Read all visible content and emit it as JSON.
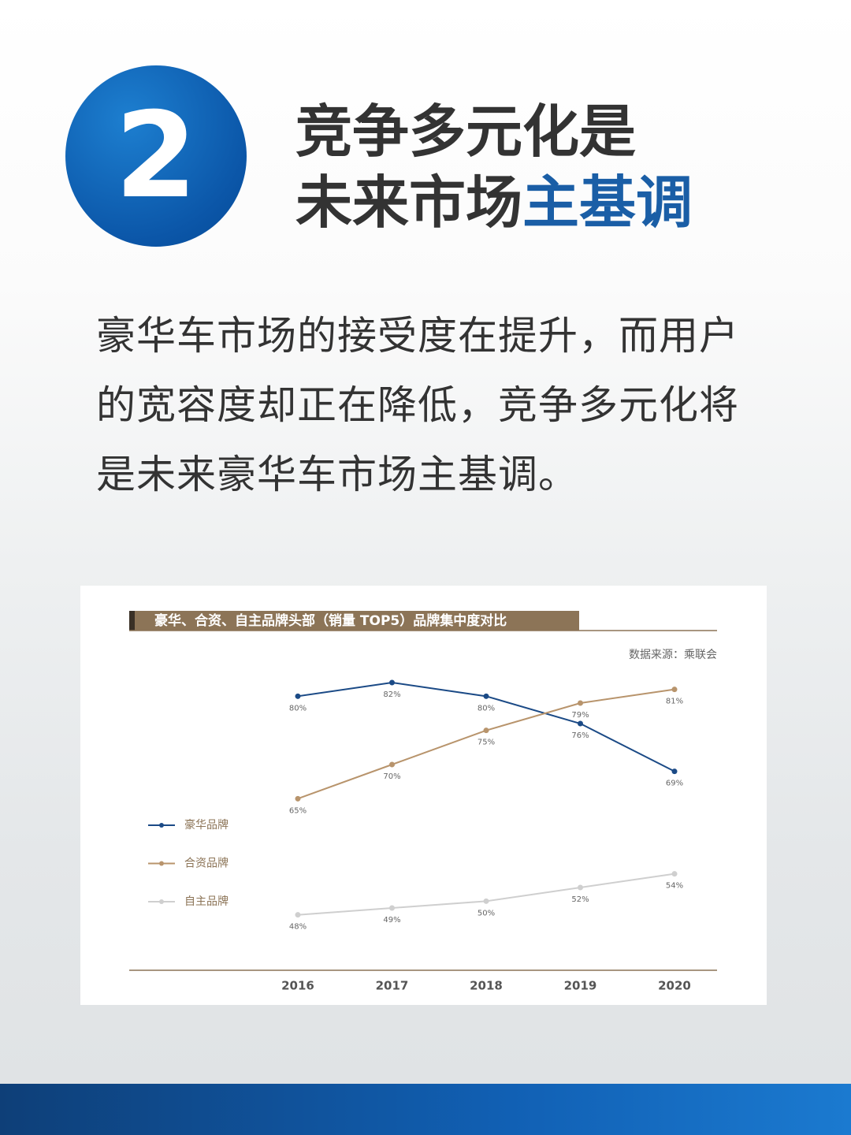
{
  "header": {
    "number": "2",
    "title_line1": "竞争多元化是",
    "title_line2_main": "未来市场",
    "title_line2_highlight": "主基调"
  },
  "body": {
    "paragraph": "豪华车市场的接受度在提升，而用户的宽容度却正在降低，竞争多元化将是未来豪华车市场主基调。"
  },
  "chart_data": {
    "type": "line",
    "title": "豪华、合资、自主品牌头部（销量 TOP5）品牌集中度对比",
    "source": "数据来源：乘联会",
    "categories": [
      "2016",
      "2017",
      "2018",
      "2019",
      "2020"
    ],
    "series": [
      {
        "name": "豪华品牌",
        "color": "#1b4a86",
        "values": [
          80,
          82,
          80,
          76,
          69
        ],
        "value_labels": [
          "80%",
          "82%",
          "80%",
          "76%",
          "69%"
        ]
      },
      {
        "name": "合资品牌",
        "color": "#b8946c",
        "values": [
          65,
          70,
          75,
          79,
          81
        ],
        "value_labels": [
          "65%",
          "70%",
          "75%",
          "79%",
          "81%"
        ]
      },
      {
        "name": "自主品牌",
        "color": "#cfcfcf",
        "values": [
          48,
          49,
          50,
          52,
          54
        ],
        "value_labels": [
          "48%",
          "49%",
          "50%",
          "52%",
          "54%"
        ]
      }
    ],
    "ylim": [
      40,
      85
    ],
    "legend": "left"
  }
}
